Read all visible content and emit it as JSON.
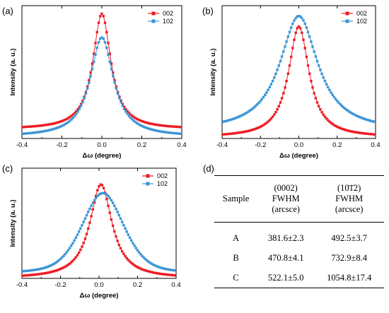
{
  "panels": [
    {
      "label": "(a)",
      "chart_data": {
        "type": "scatter",
        "xlabel": "Δω (degree)",
        "ylabel": "Intensity (a. u.)",
        "xlim": [
          -0.4,
          0.4
        ],
        "ylim": [
          0,
          1.15
        ],
        "xticks": [
          "-0.4",
          "-0.2",
          "0.0",
          "0.2",
          "0.4"
        ],
        "legend_position": "top-right",
        "series": [
          {
            "name": "002",
            "color": "#ee1c25",
            "marker": "square",
            "peak": 1.0,
            "baseline": 0.08,
            "center": 0.0,
            "hwhm": 0.055,
            "shape": "lorentzian"
          },
          {
            "name": "102",
            "color": "#3d95d4",
            "marker": "square",
            "peak": 0.86,
            "baseline": 0.015,
            "center": 0.0,
            "hwhm": 0.07,
            "shape": "lorentzian"
          }
        ]
      }
    },
    {
      "label": "(b)",
      "chart_data": {
        "type": "scatter",
        "xlabel": "Δω (degree)",
        "ylabel": "Intensity (a. u.)",
        "xlim": [
          -0.4,
          0.4
        ],
        "ylim": [
          0,
          1.15
        ],
        "xticks": [
          "-0.4",
          "-0.2",
          "0.0",
          "0.2",
          "0.4"
        ],
        "legend_position": "top-right",
        "series": [
          {
            "name": "002",
            "color": "#ee1c25",
            "marker": "square",
            "peak": 0.96,
            "baseline": 0.01,
            "center": 0.0,
            "hwhm": 0.065,
            "shape": "lorentzian"
          },
          {
            "name": "102",
            "color": "#3d95d4",
            "marker": "square",
            "peak": 1.0,
            "baseline": 0.06,
            "center": 0.0,
            "hwhm": 0.12,
            "shape": "lorentzian"
          }
        ]
      }
    },
    {
      "label": "(c)",
      "chart_data": {
        "type": "scatter",
        "xlabel": "Δω (degree)",
        "ylabel": "Intensity (a. u.)",
        "xlim": [
          -0.4,
          0.4
        ],
        "ylim": [
          0,
          1.15
        ],
        "xticks": [
          "-0.4",
          "-0.2",
          "0.0",
          "0.2",
          "0.4"
        ],
        "legend_position": "top-right",
        "series": [
          {
            "name": "002",
            "color": "#ee1c25",
            "marker": "square",
            "peak": 0.98,
            "baseline": 0.0,
            "center": 0.01,
            "hwhm": 0.07,
            "shape": "lorentzian"
          },
          {
            "name": "102",
            "color": "#3d95d4",
            "marker": "square",
            "peak": 0.85,
            "baseline": 0.04,
            "center": 0.02,
            "hwhm": 0.13,
            "shape": "broad"
          }
        ]
      }
    }
  ],
  "table": {
    "label": "(d)",
    "headers": [
      "Sample",
      "(0002)\nFWHM\n(arcsce)",
      "(10̄1̄2)\nFWHM\n(arcsce)"
    ],
    "rows": [
      [
        "A",
        "381.6±2.3",
        "492.5±3.7"
      ],
      [
        "B",
        "470.8±4.1",
        "732.9±8.4"
      ],
      [
        "C",
        "522.1±5.0",
        "1054.8±17.4"
      ]
    ]
  }
}
